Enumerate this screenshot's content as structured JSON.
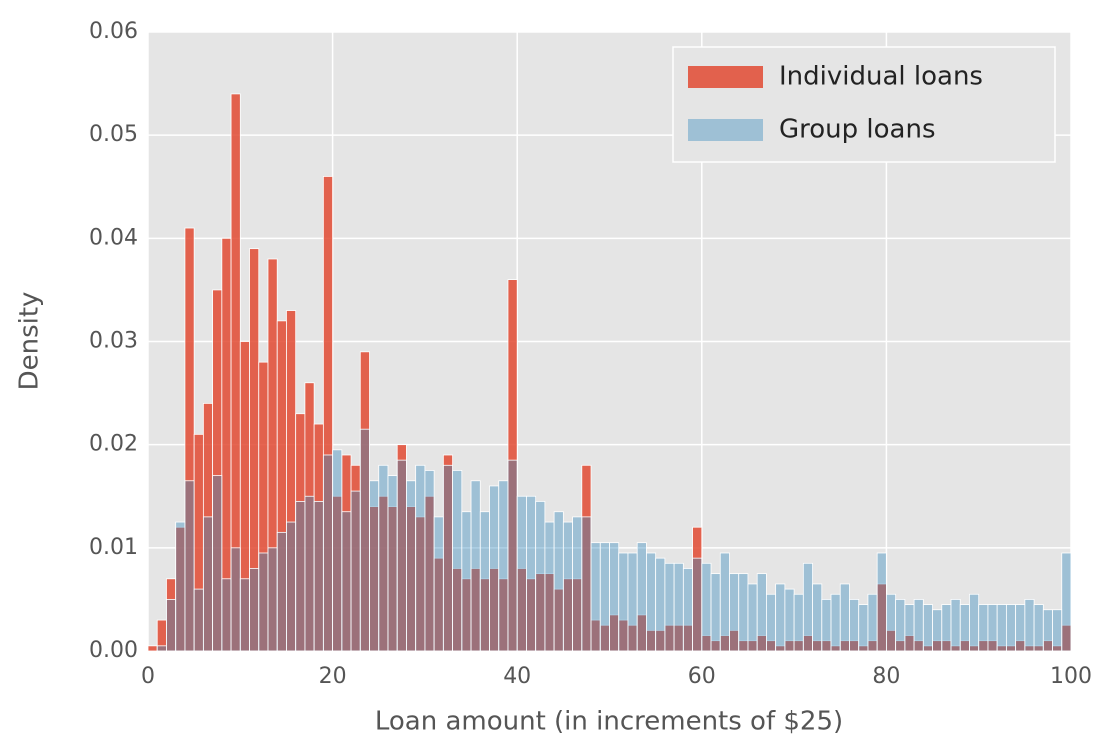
{
  "chart_data": {
    "type": "histogram",
    "xlabel": "Loan amount (in increments of $25)",
    "ylabel": "Density",
    "bins": [
      0,
      1,
      2,
      3,
      4,
      5,
      6,
      7,
      8,
      9,
      10,
      11,
      12,
      13,
      14,
      15,
      16,
      17,
      18,
      19,
      20,
      21,
      22,
      23,
      24,
      25,
      26,
      27,
      28,
      29,
      30,
      31,
      32,
      33,
      34,
      35,
      36,
      37,
      38,
      39,
      40,
      41,
      42,
      43,
      44,
      45,
      46,
      47,
      48,
      49,
      50,
      51,
      52,
      53,
      54,
      55,
      56,
      57,
      58,
      59,
      60,
      61,
      62,
      63,
      64,
      65,
      66,
      67,
      68,
      69,
      70,
      71,
      72,
      73,
      74,
      75,
      76,
      77,
      78,
      79,
      80,
      81,
      82,
      83,
      84,
      85,
      86,
      87,
      88,
      89,
      90,
      91,
      92,
      93,
      94,
      95,
      96,
      97,
      98,
      99,
      100
    ],
    "series": [
      {
        "name": "Individual loans",
        "color": "#e24a33",
        "opacity": 0.85,
        "values": [
          0.0005,
          0.003,
          0.007,
          0.012,
          0.041,
          0.021,
          0.024,
          0.035,
          0.04,
          0.054,
          0.03,
          0.039,
          0.028,
          0.038,
          0.032,
          0.033,
          0.023,
          0.026,
          0.022,
          0.046,
          0.015,
          0.019,
          0.018,
          0.029,
          0.014,
          0.015,
          0.014,
          0.02,
          0.014,
          0.013,
          0.015,
          0.009,
          0.019,
          0.008,
          0.007,
          0.008,
          0.007,
          0.008,
          0.007,
          0.036,
          0.008,
          0.007,
          0.0075,
          0.0075,
          0.006,
          0.007,
          0.007,
          0.018,
          0.003,
          0.0025,
          0.0035,
          0.003,
          0.0025,
          0.0035,
          0.002,
          0.002,
          0.0025,
          0.0025,
          0.0025,
          0.012,
          0.0015,
          0.001,
          0.0015,
          0.002,
          0.001,
          0.001,
          0.0015,
          0.001,
          0.0005,
          0.001,
          0.001,
          0.0015,
          0.001,
          0.001,
          0.0005,
          0.001,
          0.001,
          0.0005,
          0.001,
          0.0065,
          0.002,
          0.001,
          0.0015,
          0.001,
          0.0005,
          0.001,
          0.001,
          0.0005,
          0.001,
          0.0005,
          0.001,
          0.001,
          0.0005,
          0.0005,
          0.001,
          0.0005,
          0.0005,
          0.001,
          0.0005,
          0.0025
        ]
      },
      {
        "name": "Group loans",
        "color": "#348abd",
        "opacity": 0.4,
        "values": [
          0,
          0.0005,
          0.005,
          0.0125,
          0.0165,
          0.006,
          0.013,
          0.017,
          0.007,
          0.01,
          0.007,
          0.008,
          0.0095,
          0.01,
          0.0115,
          0.0125,
          0.0145,
          0.015,
          0.0145,
          0.019,
          0.0195,
          0.0135,
          0.0155,
          0.0215,
          0.0165,
          0.018,
          0.017,
          0.0185,
          0.0165,
          0.018,
          0.0175,
          0.013,
          0.018,
          0.0175,
          0.0135,
          0.0165,
          0.0135,
          0.016,
          0.0165,
          0.0185,
          0.015,
          0.015,
          0.0145,
          0.0125,
          0.0135,
          0.0125,
          0.013,
          0.013,
          0.0105,
          0.0105,
          0.0105,
          0.0095,
          0.0095,
          0.0105,
          0.0095,
          0.009,
          0.0085,
          0.0085,
          0.008,
          0.009,
          0.0085,
          0.0075,
          0.0095,
          0.0075,
          0.0075,
          0.0065,
          0.0075,
          0.0055,
          0.0065,
          0.006,
          0.0055,
          0.0085,
          0.0065,
          0.005,
          0.0055,
          0.0065,
          0.005,
          0.0045,
          0.0055,
          0.0095,
          0.0055,
          0.005,
          0.0045,
          0.005,
          0.0045,
          0.004,
          0.0045,
          0.005,
          0.0045,
          0.0055,
          0.0045,
          0.0045,
          0.0045,
          0.0045,
          0.0045,
          0.005,
          0.0045,
          0.004,
          0.004,
          0.0095
        ]
      }
    ],
    "xlim": [
      0,
      100
    ],
    "xticks": [
      0,
      20,
      40,
      60,
      80,
      100
    ],
    "ylim": [
      0,
      0.06
    ],
    "yticks": [
      {
        "value": 0,
        "label": "0.00"
      },
      0.01,
      0.02,
      0.03,
      0.04,
      0.05,
      0.06
    ],
    "grid": true,
    "legend": "upper right"
  }
}
